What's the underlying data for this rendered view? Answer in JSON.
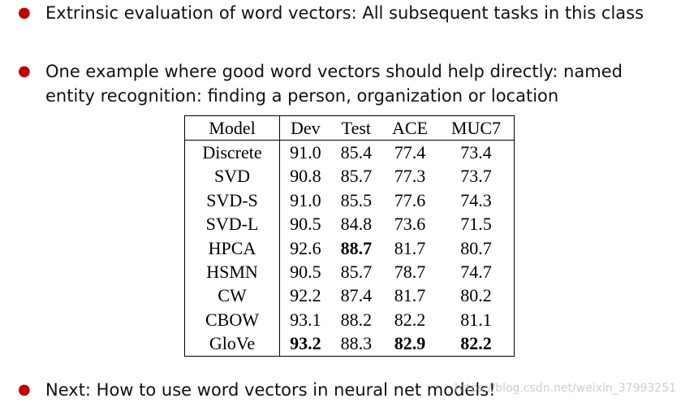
{
  "bullets": [
    "Extrinsic evaluation of word vectors: All subsequent tasks in this class",
    "One example where good word vectors should help directly: named entity recognition: finding a person, organization or location",
    "Next: How to use word vectors in neural net models!"
  ],
  "table": {
    "headers": [
      "Model",
      "Dev",
      "Test",
      "ACE",
      "MUC7"
    ],
    "rows": [
      {
        "cells": [
          "Discrete",
          "91.0",
          "85.4",
          "77.4",
          "73.4"
        ],
        "bold": [
          false,
          false,
          false,
          false,
          false
        ]
      },
      {
        "cells": [
          "SVD",
          "90.8",
          "85.7",
          "77.3",
          "73.7"
        ],
        "bold": [
          false,
          false,
          false,
          false,
          false
        ]
      },
      {
        "cells": [
          "SVD-S",
          "91.0",
          "85.5",
          "77.6",
          "74.3"
        ],
        "bold": [
          false,
          false,
          false,
          false,
          false
        ]
      },
      {
        "cells": [
          "SVD-L",
          "90.5",
          "84.8",
          "73.6",
          "71.5"
        ],
        "bold": [
          false,
          false,
          false,
          false,
          false
        ]
      },
      {
        "cells": [
          "HPCA",
          "92.6",
          "88.7",
          "81.7",
          "80.7"
        ],
        "bold": [
          false,
          false,
          true,
          false,
          false
        ]
      },
      {
        "cells": [
          "HSMN",
          "90.5",
          "85.7",
          "78.7",
          "74.7"
        ],
        "bold": [
          false,
          false,
          false,
          false,
          false
        ]
      },
      {
        "cells": [
          "CW",
          "92.2",
          "87.4",
          "81.7",
          "80.2"
        ],
        "bold": [
          false,
          false,
          false,
          false,
          false
        ]
      },
      {
        "cells": [
          "CBOW",
          "93.1",
          "88.2",
          "82.2",
          "81.1"
        ],
        "bold": [
          false,
          false,
          false,
          false,
          false
        ]
      },
      {
        "cells": [
          "GloVe",
          "93.2",
          "88.3",
          "82.9",
          "82.2"
        ],
        "bold": [
          false,
          true,
          false,
          true,
          true
        ]
      }
    ]
  },
  "watermark": "https://blog.csdn.net/weixin_37993251",
  "colors": {
    "bullet_dot": "#c00000",
    "text": "#111111"
  }
}
